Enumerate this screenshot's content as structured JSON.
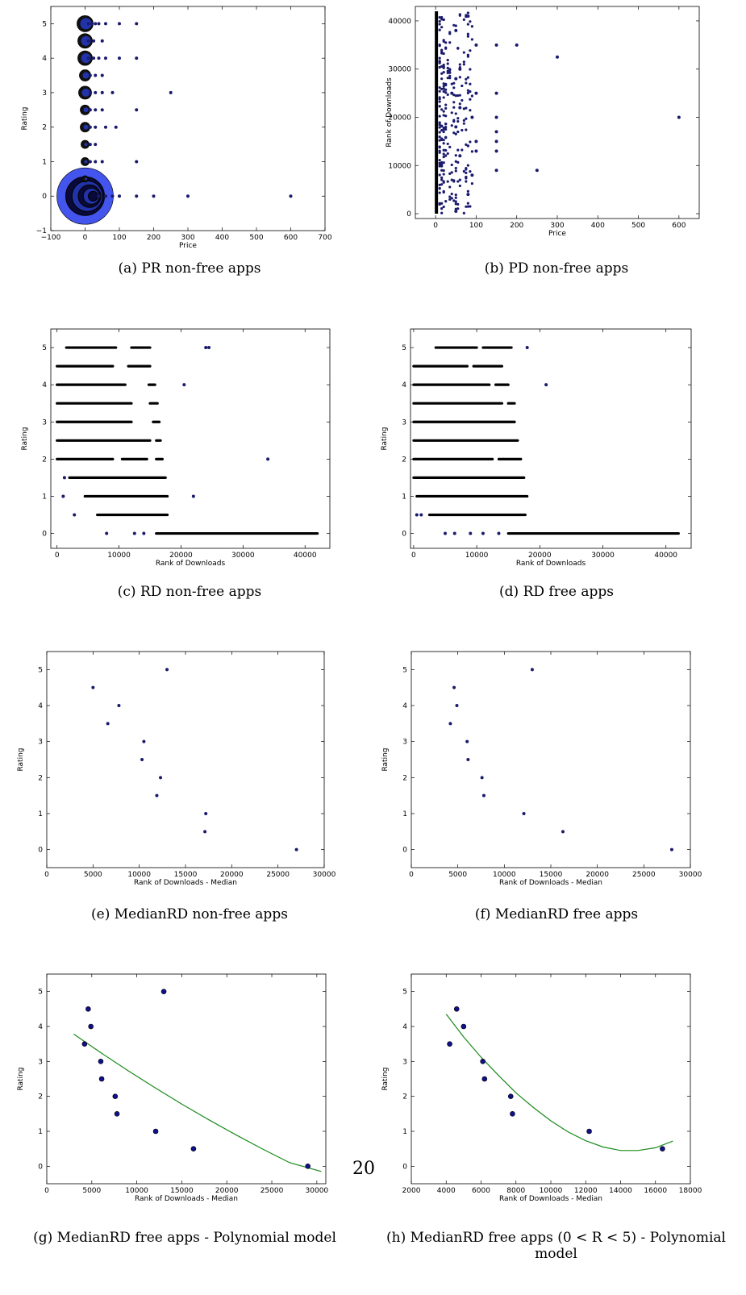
{
  "page_number": "20",
  "colors": {
    "point": "#1a1a6e",
    "marker_face": "#2233aa",
    "big_bubble": "#4455ee",
    "fit_line": "#1a8a1a"
  },
  "chart_data": [
    {
      "id": "a",
      "type": "scatter",
      "caption": "(a) PR non-free apps",
      "xlabel": "Price",
      "ylabel": "Rating",
      "xlim": [
        -100,
        700
      ],
      "ylim": [
        -1,
        5.5
      ],
      "xticks": [
        -100,
        0,
        100,
        200,
        300,
        400,
        500,
        600,
        700
      ],
      "xtick_labels": [
        "−100",
        "0",
        "100",
        "200",
        "300",
        "400",
        "500",
        "600",
        "700"
      ],
      "yticks": [
        -1,
        0,
        1,
        2,
        3,
        4,
        5
      ],
      "ytick_labels": [
        "−1",
        "0",
        "1",
        "2",
        "3",
        "4",
        "5"
      ],
      "bubbles": [
        {
          "x": 0,
          "y": 0,
          "r": 35
        },
        {
          "x": 0,
          "y": 0.5,
          "r": 4
        },
        {
          "x": 0,
          "y": 1,
          "r": 5
        },
        {
          "x": 0,
          "y": 1.5,
          "r": 5
        },
        {
          "x": 0,
          "y": 2,
          "r": 6
        },
        {
          "x": 0,
          "y": 2.5,
          "r": 6
        },
        {
          "x": 0,
          "y": 3,
          "r": 8
        },
        {
          "x": 0,
          "y": 3.5,
          "r": 7
        },
        {
          "x": 0,
          "y": 4,
          "r": 9
        },
        {
          "x": 0,
          "y": 4.5,
          "r": 9
        },
        {
          "x": 0,
          "y": 5,
          "r": 10
        }
      ],
      "points": [
        {
          "x": 10,
          "y": 5
        },
        {
          "x": 20,
          "y": 5
        },
        {
          "x": 30,
          "y": 5
        },
        {
          "x": 40,
          "y": 5
        },
        {
          "x": 60,
          "y": 5
        },
        {
          "x": 100,
          "y": 5
        },
        {
          "x": 150,
          "y": 5
        },
        {
          "x": 10,
          "y": 4.5
        },
        {
          "x": 25,
          "y": 4.5
        },
        {
          "x": 50,
          "y": 4.5
        },
        {
          "x": 10,
          "y": 4
        },
        {
          "x": 25,
          "y": 4
        },
        {
          "x": 40,
          "y": 4
        },
        {
          "x": 60,
          "y": 4
        },
        {
          "x": 100,
          "y": 4
        },
        {
          "x": 150,
          "y": 4
        },
        {
          "x": 15,
          "y": 3.5
        },
        {
          "x": 30,
          "y": 3.5
        },
        {
          "x": 50,
          "y": 3.5
        },
        {
          "x": 15,
          "y": 3
        },
        {
          "x": 30,
          "y": 3
        },
        {
          "x": 50,
          "y": 3
        },
        {
          "x": 80,
          "y": 3
        },
        {
          "x": 250,
          "y": 3
        },
        {
          "x": 15,
          "y": 2.5
        },
        {
          "x": 30,
          "y": 2.5
        },
        {
          "x": 50,
          "y": 2.5
        },
        {
          "x": 150,
          "y": 2.5
        },
        {
          "x": 15,
          "y": 2
        },
        {
          "x": 30,
          "y": 2
        },
        {
          "x": 60,
          "y": 2
        },
        {
          "x": 90,
          "y": 2
        },
        {
          "x": 15,
          "y": 1.5
        },
        {
          "x": 30,
          "y": 1.5
        },
        {
          "x": 15,
          "y": 1
        },
        {
          "x": 30,
          "y": 1
        },
        {
          "x": 50,
          "y": 1
        },
        {
          "x": 150,
          "y": 1
        },
        {
          "x": 40,
          "y": 0
        },
        {
          "x": 60,
          "y": 0
        },
        {
          "x": 80,
          "y": 0
        },
        {
          "x": 100,
          "y": 0
        },
        {
          "x": 150,
          "y": 0
        },
        {
          "x": 200,
          "y": 0
        },
        {
          "x": 300,
          "y": 0
        },
        {
          "x": 600,
          "y": 0
        }
      ]
    },
    {
      "id": "b",
      "type": "scatter",
      "caption": "(b) PD non-free apps",
      "xlabel": "Price",
      "ylabel": "Rank of Downloads",
      "xlim": [
        -50,
        650
      ],
      "ylim": [
        -1000,
        43000
      ],
      "xticks": [
        0,
        100,
        200,
        300,
        400,
        500,
        600
      ],
      "xtick_labels": [
        "0",
        "100",
        "200",
        "300",
        "400",
        "500",
        "600"
      ],
      "yticks": [
        0,
        10000,
        20000,
        30000,
        40000
      ],
      "ytick_labels": [
        "0",
        "10000",
        "20000",
        "30000",
        "40000"
      ],
      "band": {
        "x0": -2,
        "x1": 5,
        "y0": 0,
        "y1": 42000
      },
      "points": [
        {
          "x": 150,
          "y": 35000
        },
        {
          "x": 200,
          "y": 35000
        },
        {
          "x": 150,
          "y": 25000
        },
        {
          "x": 150,
          "y": 20000
        },
        {
          "x": 150,
          "y": 17000
        },
        {
          "x": 150,
          "y": 15000
        },
        {
          "x": 150,
          "y": 13000
        },
        {
          "x": 150,
          "y": 9000
        },
        {
          "x": 250,
          "y": 9000
        },
        {
          "x": 300,
          "y": 32500
        },
        {
          "x": 600,
          "y": 20000
        },
        {
          "x": 80,
          "y": 41000
        },
        {
          "x": 100,
          "y": 35000
        },
        {
          "x": 100,
          "y": 25000
        },
        {
          "x": 100,
          "y": 15000
        },
        {
          "x": 90,
          "y": 20000
        },
        {
          "x": 100,
          "y": 13000
        },
        {
          "x": 90,
          "y": 8000
        },
        {
          "x": 80,
          "y": 4000
        },
        {
          "x": 60,
          "y": 30000
        },
        {
          "x": 60,
          "y": 22000
        },
        {
          "x": 60,
          "y": 12000
        },
        {
          "x": 50,
          "y": 38000
        },
        {
          "x": 50,
          "y": 28000
        },
        {
          "x": 50,
          "y": 18000
        },
        {
          "x": 50,
          "y": 500
        },
        {
          "x": 40,
          "y": 25000
        }
      ],
      "dense_region": {
        "x0": 10,
        "x1": 90,
        "y0": 0,
        "y1": 42000,
        "n": 260
      }
    },
    {
      "id": "c",
      "type": "scatter",
      "caption": "(c) RD non-free apps",
      "xlabel": "Rank of Downloads",
      "ylabel": "Rating",
      "xlim": [
        -1000,
        44000
      ],
      "ylim": [
        -0.4,
        5.5
      ],
      "xticks": [
        0,
        10000,
        20000,
        30000,
        40000
      ],
      "xtick_labels": [
        "0",
        "10000",
        "20000",
        "30000",
        "40000"
      ],
      "yticks": [
        0,
        1,
        2,
        3,
        4,
        5
      ],
      "ytick_labels": [
        "0",
        "1",
        "2",
        "3",
        "4",
        "5"
      ],
      "segments": [
        {
          "y": 5,
          "x0": 1500,
          "x1": 9500
        },
        {
          "y": 5,
          "x0": 12000,
          "x1": 15000
        },
        {
          "y": 4.5,
          "x0": 0,
          "x1": 9000
        },
        {
          "y": 4.5,
          "x0": 11500,
          "x1": 15000
        },
        {
          "y": 4,
          "x0": 0,
          "x1": 11000
        },
        {
          "y": 4,
          "x0": 14800,
          "x1": 15800
        },
        {
          "y": 3.5,
          "x0": 0,
          "x1": 12000
        },
        {
          "y": 3.5,
          "x0": 15000,
          "x1": 16200
        },
        {
          "y": 3,
          "x0": 0,
          "x1": 12000
        },
        {
          "y": 3,
          "x0": 15500,
          "x1": 16500
        },
        {
          "y": 2.5,
          "x0": 0,
          "x1": 15000
        },
        {
          "y": 2.5,
          "x0": 16000,
          "x1": 16700
        },
        {
          "y": 2,
          "x0": 0,
          "x1": 9000
        },
        {
          "y": 2,
          "x0": 10500,
          "x1": 14500
        },
        {
          "y": 2,
          "x0": 16000,
          "x1": 17000
        },
        {
          "y": 1.5,
          "x0": 2000,
          "x1": 17500
        },
        {
          "y": 1,
          "x0": 4500,
          "x1": 17800
        },
        {
          "y": 0.5,
          "x0": 6500,
          "x1": 17800
        },
        {
          "y": 0,
          "x0": 16000,
          "x1": 42000
        }
      ],
      "points": [
        {
          "x": 24000,
          "y": 5
        },
        {
          "x": 24500,
          "y": 5
        },
        {
          "x": 20500,
          "y": 4
        },
        {
          "x": 34000,
          "y": 2
        },
        {
          "x": 22000,
          "y": 1
        },
        {
          "x": 2800,
          "y": 0.5
        },
        {
          "x": 8000,
          "y": 0
        },
        {
          "x": 12500,
          "y": 0
        },
        {
          "x": 14000,
          "y": 0
        },
        {
          "x": 1000,
          "y": 1
        },
        {
          "x": 1200,
          "y": 1.5
        }
      ]
    },
    {
      "id": "d",
      "type": "scatter",
      "caption": "(d) RD free apps",
      "xlabel": "Rank of Downloads",
      "ylabel": "Rating",
      "xlim": [
        -500,
        44000
      ],
      "ylim": [
        -0.4,
        5.5
      ],
      "xticks": [
        0,
        10000,
        20000,
        30000,
        40000
      ],
      "xtick_labels": [
        "0",
        "10000",
        "20000",
        "30000",
        "40000"
      ],
      "yticks": [
        0,
        1,
        2,
        3,
        4,
        5
      ],
      "ytick_labels": [
        "0",
        "1",
        "2",
        "3",
        "4",
        "5"
      ],
      "segments": [
        {
          "y": 5,
          "x0": 3500,
          "x1": 10000
        },
        {
          "y": 5,
          "x0": 11000,
          "x1": 15500
        },
        {
          "y": 4.5,
          "x0": 0,
          "x1": 8500
        },
        {
          "y": 4.5,
          "x0": 9500,
          "x1": 14000
        },
        {
          "y": 4,
          "x0": 0,
          "x1": 12000
        },
        {
          "y": 4,
          "x0": 13000,
          "x1": 15000
        },
        {
          "y": 3.5,
          "x0": 0,
          "x1": 14000
        },
        {
          "y": 3.5,
          "x0": 15000,
          "x1": 16000
        },
        {
          "y": 3,
          "x0": 0,
          "x1": 16000
        },
        {
          "y": 2.5,
          "x0": 0,
          "x1": 16500
        },
        {
          "y": 2,
          "x0": 0,
          "x1": 12500
        },
        {
          "y": 2,
          "x0": 13500,
          "x1": 17000
        },
        {
          "y": 1.5,
          "x0": 0,
          "x1": 17500
        },
        {
          "y": 1,
          "x0": 500,
          "x1": 18000
        },
        {
          "y": 0.5,
          "x0": 2500,
          "x1": 17700
        },
        {
          "y": 0,
          "x0": 15000,
          "x1": 42000
        }
      ],
      "points": [
        {
          "x": 18000,
          "y": 5
        },
        {
          "x": 21000,
          "y": 4
        },
        {
          "x": 5000,
          "y": 0
        },
        {
          "x": 6500,
          "y": 0
        },
        {
          "x": 9000,
          "y": 0
        },
        {
          "x": 11000,
          "y": 0
        },
        {
          "x": 13500,
          "y": 0
        },
        {
          "x": 500,
          "y": 0.5
        },
        {
          "x": 1200,
          "y": 0.5
        }
      ]
    },
    {
      "id": "e",
      "type": "scatter",
      "caption": "(e) MedianRD non-free apps",
      "xlabel": "Rank of Downloads - Median",
      "ylabel": "Rating",
      "xlim": [
        0,
        30000
      ],
      "ylim": [
        -0.5,
        5.5
      ],
      "xticks": [
        0,
        5000,
        10000,
        15000,
        20000,
        25000,
        30000
      ],
      "xtick_labels": [
        "0",
        "5000",
        "10000",
        "15000",
        "20000",
        "25000",
        "30000"
      ],
      "yticks": [
        0,
        1,
        2,
        3,
        4,
        5
      ],
      "ytick_labels": [
        "0",
        "1",
        "2",
        "3",
        "4",
        "5"
      ],
      "points": [
        {
          "x": 5000,
          "y": 4.5
        },
        {
          "x": 6600,
          "y": 3.5
        },
        {
          "x": 7800,
          "y": 4
        },
        {
          "x": 10500,
          "y": 3
        },
        {
          "x": 10300,
          "y": 2.5
        },
        {
          "x": 12300,
          "y": 2
        },
        {
          "x": 11900,
          "y": 1.5
        },
        {
          "x": 13000,
          "y": 5
        },
        {
          "x": 17200,
          "y": 1
        },
        {
          "x": 17100,
          "y": 0.5
        },
        {
          "x": 27000,
          "y": 0
        }
      ]
    },
    {
      "id": "f",
      "type": "scatter",
      "caption": "(f) MedianRD free apps",
      "xlabel": "Rank of Downloads - Median",
      "ylabel": "Rating",
      "xlim": [
        0,
        30000
      ],
      "ylim": [
        -0.5,
        5.5
      ],
      "xticks": [
        0,
        5000,
        10000,
        15000,
        20000,
        25000,
        30000
      ],
      "xtick_labels": [
        "0",
        "5000",
        "10000",
        "15000",
        "20000",
        "25000",
        "30000"
      ],
      "yticks": [
        0,
        1,
        2,
        3,
        4,
        5
      ],
      "ytick_labels": [
        "0",
        "1",
        "2",
        "3",
        "4",
        "5"
      ],
      "points": [
        {
          "x": 4200,
          "y": 3.5
        },
        {
          "x": 4600,
          "y": 4.5
        },
        {
          "x": 4900,
          "y": 4
        },
        {
          "x": 6000,
          "y": 3
        },
        {
          "x": 6100,
          "y": 2.5
        },
        {
          "x": 7600,
          "y": 2
        },
        {
          "x": 7800,
          "y": 1.5
        },
        {
          "x": 13000,
          "y": 5
        },
        {
          "x": 12100,
          "y": 1
        },
        {
          "x": 16300,
          "y": 0.5
        },
        {
          "x": 28000,
          "y": 0
        }
      ]
    },
    {
      "id": "g",
      "type": "scatter",
      "caption": "(g) MedianRD free apps - Polynomial model",
      "xlabel": "Rank of Downloads - Median",
      "ylabel": "Rating",
      "xlim": [
        0,
        31000
      ],
      "ylim": [
        -0.5,
        5.5
      ],
      "xticks": [
        0,
        5000,
        10000,
        15000,
        20000,
        25000,
        30000
      ],
      "xtick_labels": [
        "0",
        "5000",
        "10000",
        "15000",
        "20000",
        "25000",
        "30000"
      ],
      "yticks": [
        0,
        1,
        2,
        3,
        4,
        5
      ],
      "ytick_labels": [
        "0",
        "1",
        "2",
        "3",
        "4",
        "5"
      ],
      "points": [
        {
          "x": 4200,
          "y": 3.5
        },
        {
          "x": 4600,
          "y": 4.5
        },
        {
          "x": 4900,
          "y": 4
        },
        {
          "x": 6000,
          "y": 3
        },
        {
          "x": 6100,
          "y": 2.5
        },
        {
          "x": 7600,
          "y": 2
        },
        {
          "x": 7800,
          "y": 1.5
        },
        {
          "x": 13000,
          "y": 5
        },
        {
          "x": 12100,
          "y": 1
        },
        {
          "x": 16300,
          "y": 0.5
        },
        {
          "x": 29000,
          "y": 0
        }
      ],
      "fit_curve": [
        {
          "x": 3000,
          "y": 3.78
        },
        {
          "x": 6000,
          "y": 3.25
        },
        {
          "x": 9000,
          "y": 2.74
        },
        {
          "x": 12000,
          "y": 2.25
        },
        {
          "x": 15000,
          "y": 1.78
        },
        {
          "x": 18000,
          "y": 1.33
        },
        {
          "x": 21000,
          "y": 0.9
        },
        {
          "x": 24000,
          "y": 0.49
        },
        {
          "x": 27000,
          "y": 0.1
        },
        {
          "x": 30500,
          "y": -0.15
        }
      ]
    },
    {
      "id": "h",
      "type": "scatter",
      "caption": "(h) MedianRD free apps (0 < R < 5) - Polynomial model",
      "xlabel": "Rank of Downloads - Median",
      "ylabel": "Rating",
      "xlim": [
        2000,
        18000
      ],
      "ylim": [
        -0.5,
        5.5
      ],
      "xticks": [
        2000,
        4000,
        6000,
        8000,
        10000,
        12000,
        14000,
        16000,
        18000
      ],
      "xtick_labels": [
        "2000",
        "4000",
        "6000",
        "8000",
        "10000",
        "12000",
        "14000",
        "16000",
        "18000"
      ],
      "yticks": [
        0,
        1,
        2,
        3,
        4,
        5
      ],
      "ytick_labels": [
        "0",
        "1",
        "2",
        "3",
        "4",
        "5"
      ],
      "points": [
        {
          "x": 4200,
          "y": 3.5
        },
        {
          "x": 4600,
          "y": 4.5
        },
        {
          "x": 5000,
          "y": 4
        },
        {
          "x": 6100,
          "y": 3
        },
        {
          "x": 6200,
          "y": 2.5
        },
        {
          "x": 7700,
          "y": 2
        },
        {
          "x": 7800,
          "y": 1.5
        },
        {
          "x": 12200,
          "y": 1
        },
        {
          "x": 16400,
          "y": 0.5
        }
      ],
      "fit_curve": [
        {
          "x": 4000,
          "y": 4.35
        },
        {
          "x": 5000,
          "y": 3.7
        },
        {
          "x": 6000,
          "y": 3.12
        },
        {
          "x": 7000,
          "y": 2.6
        },
        {
          "x": 8000,
          "y": 2.1
        },
        {
          "x": 9000,
          "y": 1.68
        },
        {
          "x": 10000,
          "y": 1.3
        },
        {
          "x": 11000,
          "y": 0.98
        },
        {
          "x": 12000,
          "y": 0.73
        },
        {
          "x": 13000,
          "y": 0.55
        },
        {
          "x": 14000,
          "y": 0.45
        },
        {
          "x": 15000,
          "y": 0.45
        },
        {
          "x": 16000,
          "y": 0.53
        },
        {
          "x": 17000,
          "y": 0.72
        }
      ]
    }
  ]
}
